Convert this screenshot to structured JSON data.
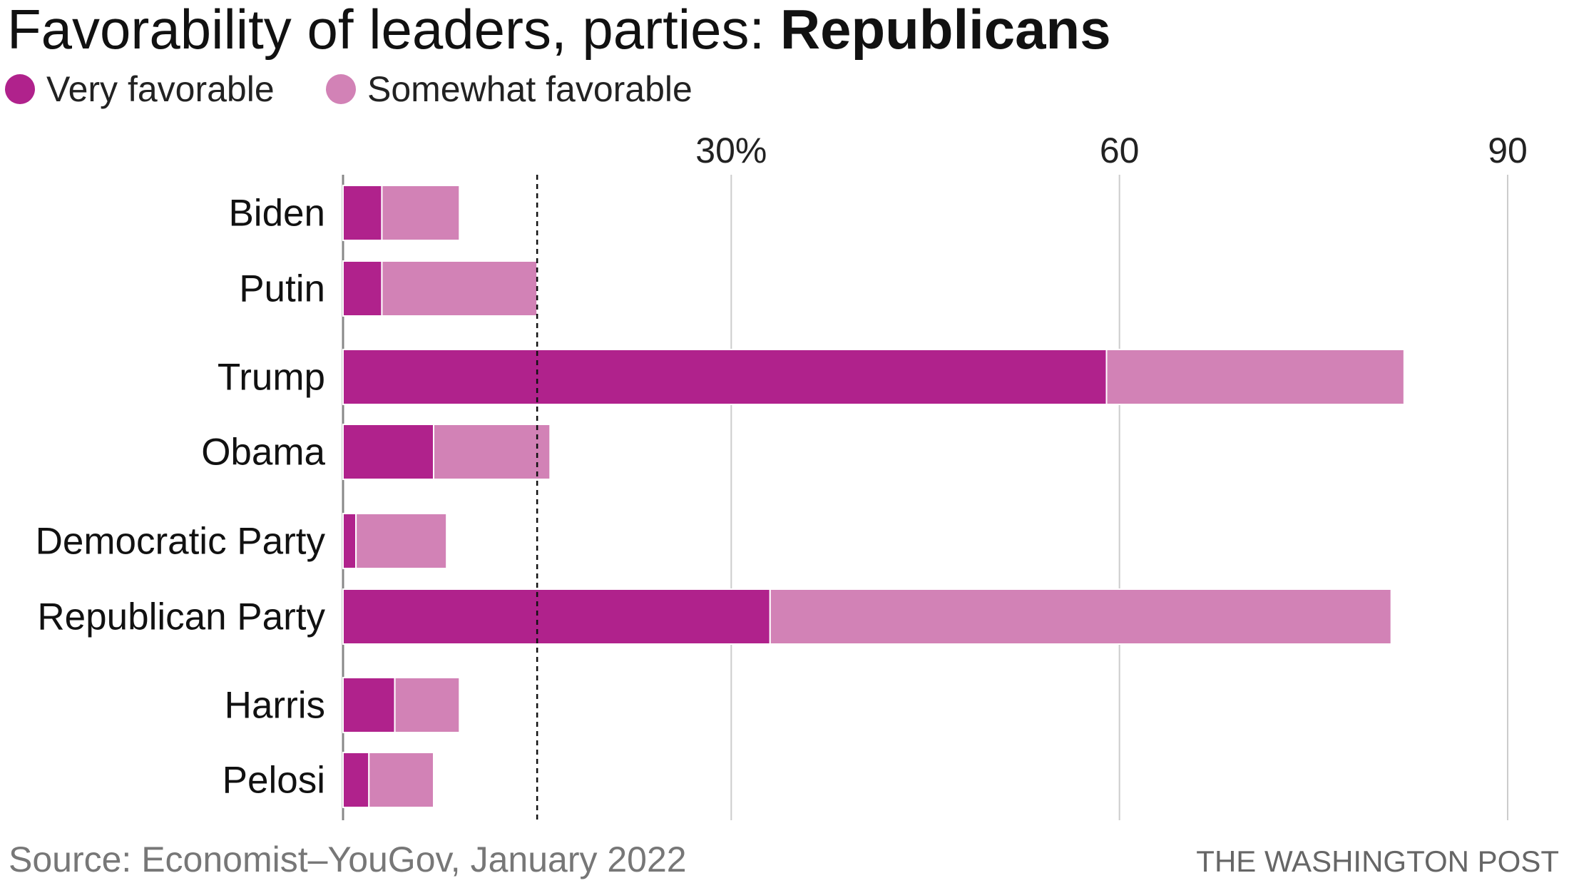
{
  "chart_data": {
    "type": "bar",
    "orientation": "horizontal",
    "stacked": true,
    "title_regular": "Favorability of leaders, parties: ",
    "title_bold": "Republicans",
    "categories": [
      "Biden",
      "Putin",
      "Trump",
      "Obama",
      "Democratic Party",
      "Republican Party",
      "Harris",
      "Pelosi"
    ],
    "series": [
      {
        "name": "Very favorable",
        "color": "#b0228c",
        "values": [
          3,
          3,
          59,
          7,
          1,
          33,
          4,
          2
        ]
      },
      {
        "name": "Somewhat favorable",
        "color": "#d282b6",
        "values": [
          6,
          12,
          23,
          9,
          7,
          48,
          5,
          5
        ]
      }
    ],
    "xlim": [
      0,
      90
    ],
    "ticks": [
      {
        "value": 30,
        "label": "30%"
      },
      {
        "value": 60,
        "label": "60"
      },
      {
        "value": 90,
        "label": "90"
      }
    ],
    "reference_line": {
      "value": 15,
      "style": "dashed"
    },
    "grid": true,
    "legend_placement": "top-left",
    "source": "Source: Economist–YouGov, January 2022",
    "credit": "THE WASHINGTON POST"
  }
}
